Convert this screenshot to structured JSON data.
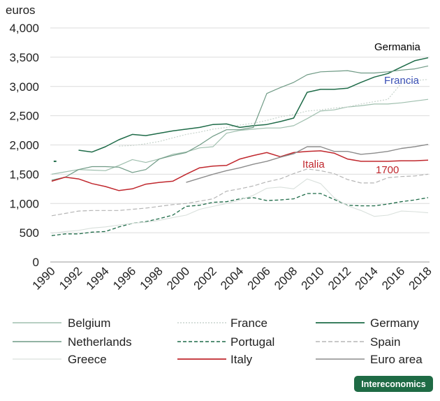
{
  "brand": "Intereconomics",
  "chart_data": {
    "type": "line",
    "ylabel": "euros",
    "yticks": [
      "0",
      "500",
      "1,000",
      "1,500",
      "2,000",
      "2,500",
      "3,000",
      "3,500",
      "4,000"
    ],
    "xticks": [
      "1990",
      "1992",
      "1994",
      "1996",
      "1998",
      "2000",
      "2002",
      "2004",
      "2006",
      "2008",
      "2010",
      "2012",
      "2014",
      "2016",
      "2018"
    ],
    "xlim": [
      1990,
      2018
    ],
    "ylim": [
      0,
      4000
    ],
    "grid": true,
    "legend": "bottom",
    "annotations": [
      {
        "text": "Germania",
        "color": "#000000"
      },
      {
        "text": "Francia",
        "color": "#3a4fb5"
      },
      {
        "text": "Italia",
        "color": "#c0272d"
      },
      {
        "text": "1700",
        "color": "#c0272d"
      }
    ],
    "series": [
      {
        "name": "Belgium",
        "color": "#9fbfae",
        "dash": "",
        "width": 1.2,
        "x": [
          1990,
          1991,
          1992,
          1993,
          1994,
          1995,
          1996,
          1997,
          1998,
          1999,
          2000,
          2001,
          2002,
          2003,
          2004,
          2005,
          2006,
          2007,
          2008,
          2009,
          2010,
          2011,
          2012,
          2013,
          2014,
          2015,
          2016,
          2017,
          2018
        ],
        "y": [
          1500,
          1540,
          1580,
          1570,
          1560,
          1650,
          1750,
          1700,
          1760,
          1840,
          1880,
          1950,
          1970,
          2200,
          2250,
          2270,
          2290,
          2290,
          2330,
          2450,
          2580,
          2600,
          2650,
          2670,
          2700,
          2700,
          2720,
          2750,
          2780
        ]
      },
      {
        "name": "France",
        "color": "#c8d4cd",
        "dash": "2,2",
        "width": 1.2,
        "x": [
          1995,
          1996,
          1997,
          1998,
          1999,
          2000,
          2001,
          2002,
          2003,
          2004,
          2005,
          2006,
          2007,
          2008,
          2009,
          2010,
          2011,
          2012,
          2013,
          2014,
          2015,
          2016,
          2017,
          2018
        ],
        "y": [
          1980,
          1990,
          2020,
          2060,
          2120,
          2180,
          2220,
          2270,
          2300,
          2340,
          2370,
          2420,
          2480,
          2520,
          2580,
          2600,
          2630,
          2650,
          2700,
          2740,
          2780,
          3050,
          3100,
          3120
        ]
      },
      {
        "name": "Germany",
        "color": "#1e6b48",
        "dash": "",
        "width": 1.5,
        "x": [
          1992,
          1993,
          1994,
          1995,
          1996,
          1997,
          1998,
          1999,
          2000,
          2001,
          2002,
          2003,
          2004,
          2005,
          2006,
          2007,
          2008,
          2009,
          2010,
          2011,
          2012,
          2013,
          2014,
          2015,
          2016,
          2017,
          2018
        ],
        "y": [
          1910,
          1880,
          1970,
          2090,
          2180,
          2160,
          2200,
          2240,
          2270,
          2300,
          2350,
          2360,
          2300,
          2330,
          2350,
          2400,
          2460,
          2900,
          2950,
          2950,
          2970,
          3070,
          3160,
          3220,
          3330,
          3440,
          3490
        ]
      },
      {
        "name": "Netherlands",
        "color": "#6f9a85",
        "dash": "",
        "width": 1.2,
        "x": [
          1990,
          1991,
          1992,
          1993,
          1994,
          1995,
          1996,
          1997,
          1998,
          1999,
          2000,
          2001,
          2002,
          2003,
          2004,
          2005,
          2006,
          2007,
          2008,
          2009,
          2010,
          2011,
          2012,
          2013,
          2014,
          2015,
          2016,
          2017,
          2018
        ],
        "y": [
          1400,
          1450,
          1580,
          1630,
          1630,
          1620,
          1530,
          1580,
          1760,
          1820,
          1870,
          2000,
          2150,
          2260,
          2260,
          2300,
          2880,
          2980,
          3070,
          3200,
          3250,
          3260,
          3270,
          3230,
          3230,
          3250,
          3280,
          3300,
          3350
        ]
      },
      {
        "name": "Portugal",
        "color": "#1e6b48",
        "dash": "5,3",
        "width": 1.3,
        "x": [
          1990,
          1991,
          1992,
          1993,
          1994,
          1995,
          1996,
          1997,
          1998,
          1999,
          2000,
          2001,
          2002,
          2003,
          2004,
          2005,
          2006,
          2007,
          2008,
          2009,
          2010,
          2011,
          2012,
          2013,
          2014,
          2015,
          2016,
          2017,
          2018
        ],
        "y": [
          450,
          480,
          480,
          510,
          520,
          600,
          660,
          690,
          740,
          800,
          950,
          970,
          1020,
          1030,
          1080,
          1100,
          1050,
          1060,
          1080,
          1170,
          1170,
          1070,
          970,
          960,
          960,
          990,
          1030,
          1060,
          1100
        ]
      },
      {
        "name": "Spain",
        "color": "#b5b5b5",
        "dash": "6,3",
        "width": 1.2,
        "x": [
          1990,
          1991,
          1992,
          1993,
          1994,
          1995,
          1996,
          1997,
          1998,
          1999,
          2000,
          2001,
          2002,
          2003,
          2004,
          2005,
          2006,
          2007,
          2008,
          2009,
          2010,
          2011,
          2012,
          2013,
          2014,
          2015,
          2016,
          2017,
          2018
        ],
        "y": [
          790,
          830,
          870,
          880,
          880,
          880,
          900,
          920,
          950,
          980,
          1000,
          1040,
          1080,
          1210,
          1250,
          1300,
          1370,
          1420,
          1510,
          1590,
          1560,
          1510,
          1410,
          1350,
          1350,
          1440,
          1460,
          1470,
          1500
        ]
      },
      {
        "name": "Greece",
        "color": "#d9e0dc",
        "dash": "",
        "width": 1.1,
        "x": [
          1990,
          1991,
          1992,
          1993,
          1994,
          1995,
          1996,
          1997,
          1998,
          1999,
          2000,
          2001,
          2002,
          2003,
          2004,
          2005,
          2006,
          2007,
          2008,
          2009,
          2010,
          2011,
          2012,
          2013,
          2014,
          2015,
          2016,
          2017,
          2018
        ],
        "y": [
          490,
          520,
          540,
          580,
          600,
          630,
          660,
          680,
          710,
          760,
          800,
          900,
          950,
          1000,
          1060,
          1140,
          1260,
          1280,
          1250,
          1420,
          1340,
          1100,
          960,
          880,
          780,
          800,
          870,
          860,
          840
        ]
      },
      {
        "name": "Italy",
        "color": "#c0272d",
        "dash": "",
        "width": 1.5,
        "x": [
          1990,
          1991,
          1992,
          1993,
          1994,
          1995,
          1996,
          1997,
          1998,
          1999,
          2000,
          2001,
          2002,
          2003,
          2004,
          2005,
          2006,
          2007,
          2008,
          2009,
          2010,
          2011,
          2012,
          2013,
          2014,
          2015,
          2016,
          2017,
          2018
        ],
        "y": [
          1380,
          1450,
          1420,
          1340,
          1290,
          1220,
          1250,
          1330,
          1360,
          1380,
          1500,
          1610,
          1640,
          1650,
          1760,
          1820,
          1870,
          1800,
          1870,
          1890,
          1900,
          1860,
          1760,
          1720,
          1720,
          1720,
          1730,
          1730,
          1740
        ]
      },
      {
        "name": "Euro area",
        "color": "#8c8c8c",
        "dash": "",
        "width": 1.4,
        "x": [
          2000,
          2001,
          2002,
          2003,
          2004,
          2005,
          2006,
          2007,
          2008,
          2009,
          2010,
          2011,
          2012,
          2013,
          2014,
          2015,
          2016,
          2017,
          2018
        ],
        "y": [
          1360,
          1430,
          1500,
          1560,
          1610,
          1670,
          1720,
          1790,
          1850,
          1970,
          1970,
          1890,
          1890,
          1840,
          1860,
          1890,
          1940,
          1970,
          2010
        ]
      },
      {
        "name": "",
        "color": "#1e6b48",
        "dash": "",
        "width": 2,
        "x": [
          1990.15,
          1990.35
        ],
        "y": [
          1720,
          1720
        ]
      }
    ]
  }
}
